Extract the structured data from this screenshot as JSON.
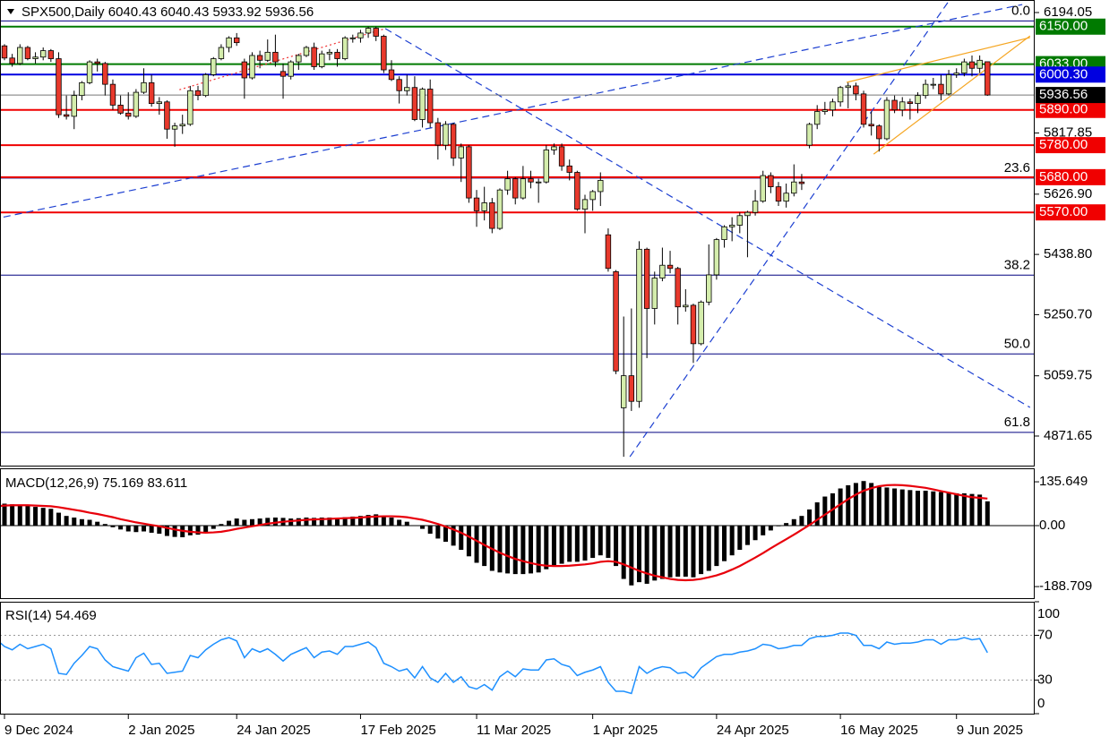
{
  "chart_data": {
    "type": "candlestick",
    "symbol": "SPX500,Daily",
    "xticks": [
      {
        "value": 1,
        "label": "9 Dec 2024"
      },
      {
        "value": 17,
        "label": "2 Jan 2025"
      },
      {
        "value": 31,
        "label": "24 Jan 2025"
      },
      {
        "value": 47,
        "label": "17 Feb 2025"
      },
      {
        "value": 62,
        "label": "11 Mar 2025"
      },
      {
        "value": 77,
        "label": "1 Apr 2025"
      },
      {
        "value": 93,
        "label": "24 Apr 2025"
      },
      {
        "value": 109,
        "label": "16 May 2025"
      },
      {
        "value": 124,
        "label": "9 Jun 2025"
      }
    ],
    "ylim": [
      4779.3,
      6233.2
    ],
    "yticks": [
      6194.05,
      5817.85,
      {
        "value": 5626.9,
        "label": "5626.90"
      },
      {
        "value": 5438.8,
        "label": "5438.80"
      },
      {
        "value": 5250.7,
        "label": "5250.70"
      },
      5059.75,
      4871.65
    ],
    "up_color": "#d4edac",
    "down_color": "#e8392c",
    "open": [
      6060,
      6090,
      6052,
      6035,
      6085,
      6050,
      6055,
      6075,
      6050,
      5875,
      5870,
      5935,
      5975,
      6040,
      6035,
      5970,
      5905,
      5880,
      5870,
      5945,
      5975,
      5910,
      5915,
      5830,
      5840,
      5845,
      5950,
      5935,
      6000,
      6050,
      6085,
      6115,
      6040,
      5990,
      6060,
      6045,
      6070,
      6010,
      5995,
      6040,
      6060,
      6085,
      6025,
      6065,
      6070,
      6050,
      6115,
      6115,
      6130,
      6145,
      6120,
      6015,
      5985,
      5950,
      5960,
      5860,
      5955,
      5850,
      5780,
      5845,
      5740,
      5775,
      5615,
      5575,
      5600,
      5520,
      5640,
      5675,
      5615,
      5675,
      5665,
      5665,
      5765,
      5775,
      5715,
      5695,
      5580,
      5610,
      5635,
      5500,
      5385,
      4960,
      5060,
      4980,
      5455,
      5270,
      5365,
      5405,
      5395,
      5275,
      5280,
      5160,
      5290,
      5375,
      5485,
      5525,
      5530,
      5560,
      5570,
      5605,
      5685,
      5650,
      5605,
      5630,
      5665,
      5780,
      5845,
      5885,
      5890,
      5915,
      5960,
      5965,
      5940,
      5845,
      5840,
      5800,
      5920,
      5890,
      5915,
      5910,
      5935,
      5970,
      5970,
      5940,
      6000,
      6005,
      6040,
      6020,
      6040.43
    ],
    "high": [
      6100,
      6095,
      6065,
      6095,
      6090,
      6070,
      6085,
      6080,
      6070,
      5935,
      5950,
      5980,
      6045,
      6050,
      6040,
      5985,
      5935,
      5945,
      5955,
      6020,
      6000,
      5930,
      5920,
      5850,
      5875,
      5965,
      5965,
      6005,
      6055,
      6095,
      6120,
      6130,
      6050,
      6070,
      6075,
      6110,
      6125,
      6035,
      6045,
      6065,
      6090,
      6100,
      6075,
      6080,
      6080,
      6120,
      6125,
      6140,
      6150,
      6150,
      6125,
      6045,
      5995,
      6000,
      5995,
      5960,
      5985,
      5865,
      5855,
      5850,
      5785,
      5780,
      5640,
      5650,
      5615,
      5645,
      5700,
      5680,
      5715,
      5700,
      5675,
      5780,
      5785,
      5785,
      5735,
      5700,
      5625,
      5640,
      5695,
      5520,
      5390,
      5245,
      5270,
      5480,
      5460,
      5385,
      5460,
      5450,
      5400,
      5330,
      5285,
      5295,
      5470,
      5490,
      5530,
      5555,
      5570,
      5575,
      5640,
      5700,
      5695,
      5665,
      5660,
      5720,
      5690,
      5850,
      5905,
      5915,
      5925,
      5965,
      5975,
      5975,
      5950,
      5885,
      5845,
      5930,
      5935,
      5930,
      5925,
      5945,
      5985,
      5990,
      6000,
      6015,
      6020,
      6050,
      6060,
      6060,
      6040.43
    ],
    "low": [
      6050,
      6045,
      6025,
      6030,
      6045,
      6035,
      6045,
      6040,
      5865,
      5860,
      5830,
      5920,
      5970,
      6010,
      5935,
      5890,
      5875,
      5860,
      5865,
      5940,
      5900,
      5875,
      5800,
      5775,
      5815,
      5840,
      5920,
      5930,
      5995,
      6045,
      6070,
      6090,
      5925,
      5985,
      6020,
      6040,
      6025,
      5925,
      5985,
      6015,
      6055,
      6015,
      6020,
      6045,
      6025,
      6045,
      6100,
      6100,
      6115,
      6105,
      6005,
      5980,
      5910,
      5935,
      5855,
      5835,
      5835,
      5735,
      5765,
      5715,
      5665,
      5600,
      5525,
      5545,
      5505,
      5515,
      5625,
      5595,
      5610,
      5645,
      5600,
      5660,
      5750,
      5700,
      5670,
      5575,
      5505,
      5575,
      5590,
      5385,
      5065,
      4807,
      4950,
      4960,
      5115,
      5220,
      5355,
      5380,
      5220,
      5260,
      5100,
      5155,
      5280,
      5360,
      5460,
      5480,
      5505,
      5430,
      5560,
      5600,
      5630,
      5590,
      5585,
      5620,
      5640,
      5770,
      5830,
      5875,
      5870,
      5900,
      5895,
      5920,
      5835,
      5810,
      5760,
      5795,
      5880,
      5870,
      5860,
      5880,
      5925,
      5955,
      5920,
      5935,
      5990,
      5995,
      5995,
      6005,
      5933.92
    ],
    "close": [
      6090,
      6052,
      6035,
      6085,
      6050,
      6055,
      6075,
      6050,
      5875,
      5870,
      5935,
      5975,
      6040,
      6035,
      5970,
      5905,
      5880,
      5870,
      5945,
      5975,
      5910,
      5915,
      5830,
      5840,
      5845,
      5950,
      5935,
      6000,
      6050,
      6085,
      6115,
      6100,
      5990,
      6060,
      6045,
      6070,
      6040,
      5995,
      6040,
      6060,
      6085,
      6025,
      6065,
      6070,
      6050,
      6115,
      6115,
      6130,
      6145,
      6120,
      6015,
      5985,
      5950,
      5960,
      5860,
      5955,
      5850,
      5780,
      5845,
      5740,
      5775,
      5615,
      5575,
      5600,
      5520,
      5640,
      5675,
      5615,
      5675,
      5665,
      5665,
      5765,
      5775,
      5715,
      5695,
      5580,
      5610,
      5635,
      5670,
      5395,
      5075,
      5060,
      4980,
      5455,
      5270,
      5365,
      5405,
      5395,
      5275,
      5280,
      5160,
      5290,
      5375,
      5485,
      5525,
      5530,
      5560,
      5570,
      5605,
      5685,
      5650,
      5605,
      5630,
      5665,
      5660,
      5845,
      5885,
      5890,
      5915,
      5960,
      5965,
      5940,
      5845,
      5840,
      5800,
      5920,
      5890,
      5915,
      5910,
      5935,
      5970,
      5970,
      5940,
      6000,
      6005,
      6040,
      6020,
      6045,
      5936.56
    ],
    "levels": [
      {
        "value": 6150,
        "label": "6150.00",
        "color": "#007a00"
      },
      {
        "value": 6033,
        "label": "6033.00",
        "color": "#007a00"
      },
      {
        "value": 6000.3,
        "label": "6000.30",
        "color": "#0000e0"
      },
      {
        "value": 5890,
        "label": "5890.00",
        "color": "#f00000"
      },
      {
        "value": 5780,
        "label": "5780.00",
        "color": "#f00000"
      },
      {
        "value": 5680,
        "label": "5680.00",
        "color": "#f00000"
      },
      {
        "value": 5570,
        "label": "5570.00",
        "color": "#f00000"
      }
    ],
    "fibonacci": {
      "color": "#000080",
      "levels": [
        {
          "value": 6168,
          "label": "0.0"
        },
        {
          "value": 5677,
          "label": "23.6"
        },
        {
          "value": 5374,
          "label": "38.2"
        },
        {
          "value": 5128,
          "label": "50.0"
        },
        {
          "value": 4883,
          "label": "61.8"
        }
      ]
    },
    "trendlines": [
      {
        "from": [
          -0.6,
          5548
        ],
        "to": [
          132.5,
          6219
        ],
        "color": "#1c3fd1",
        "dash": "8 5"
      },
      {
        "from": [
          50.2,
          6144
        ],
        "to": [
          133.5,
          4961
        ],
        "color": "#1c3fd1",
        "dash": "8 5"
      },
      {
        "from": [
          81.8,
          4807
        ],
        "to": [
          123.1,
          6233
        ],
        "color": "#1c3fd1",
        "dash": "8 5"
      },
      {
        "from": [
          23.6,
          5953
        ],
        "to": [
          50.2,
          6144
        ],
        "color": "#f03030",
        "dash": "2 3"
      },
      {
        "from": [
          109.8,
          5976
        ],
        "to": [
          133.5,
          6116
        ],
        "color": "#f5a623",
        "dash": "none"
      },
      {
        "from": [
          113.3,
          5752
        ],
        "to": [
          133.5,
          6121
        ],
        "color": "#f5a623",
        "dash": "none"
      }
    ],
    "macd": {
      "title": "MACD(12,26,9)",
      "ylim": [
        -224.5,
        177.4
      ],
      "yticks": [
        135.649,
        {
          "value": 0,
          "label": "0.00"
        },
        -188.709
      ],
      "color": "#000000",
      "signal_color": "#e8000b",
      "values": [
        70,
        68,
        66,
        65,
        62,
        58,
        55,
        52,
        40,
        30,
        25,
        20,
        18,
        12,
        5,
        -5,
        -12,
        -18,
        -20,
        -18,
        -22,
        -25,
        -32,
        -35,
        -36,
        -30,
        -28,
        -20,
        -10,
        5,
        15,
        22,
        18,
        20,
        22,
        24,
        25,
        24,
        22,
        23,
        25,
        24,
        25,
        25,
        23,
        26,
        28,
        30,
        33,
        35,
        30,
        25,
        18,
        12,
        0,
        -10,
        -25,
        -40,
        -50,
        -62,
        -75,
        -95,
        -115,
        -125,
        -140,
        -145,
        -148,
        -150,
        -150,
        -148,
        -145,
        -135,
        -125,
        -118,
        -112,
        -112,
        -108,
        -100,
        -92,
        -100,
        -125,
        -165,
        -185,
        -175,
        -180,
        -170,
        -165,
        -160,
        -158,
        -158,
        -160,
        -150,
        -140,
        -125,
        -110,
        -92,
        -75,
        -60,
        -45,
        -30,
        -15,
        -2,
        8,
        20,
        30,
        50,
        72,
        90,
        100,
        115,
        125,
        132,
        138,
        132,
        120,
        118,
        115,
        112,
        110,
        108,
        108,
        106,
        104,
        102,
        100,
        100,
        98,
        96,
        75.169
      ],
      "signal": [
        60,
        62,
        63,
        63,
        63,
        62,
        61,
        60,
        57,
        53,
        49,
        45,
        40,
        36,
        31,
        26,
        20,
        15,
        10,
        6,
        2,
        -2,
        -7,
        -12,
        -16,
        -19,
        -21,
        -22,
        -21,
        -19,
        -15,
        -10,
        -6,
        -2,
        2,
        6,
        9,
        12,
        14,
        16,
        18,
        19,
        20,
        21,
        22,
        23,
        24,
        25,
        27,
        28,
        29,
        29,
        28,
        26,
        22,
        18,
        12,
        5,
        -3,
        -12,
        -22,
        -34,
        -47,
        -60,
        -72,
        -84,
        -94,
        -103,
        -110,
        -116,
        -121,
        -124,
        -125,
        -125,
        -124,
        -122,
        -120,
        -117,
        -112,
        -110,
        -112,
        -120,
        -130,
        -140,
        -148,
        -155,
        -160,
        -165,
        -168,
        -169,
        -168,
        -165,
        -160,
        -154,
        -146,
        -136,
        -125,
        -112,
        -99,
        -85,
        -70,
        -56,
        -42,
        -28,
        -13,
        2,
        18,
        34,
        50,
        66,
        82,
        96,
        108,
        116,
        122,
        125,
        126,
        125,
        123,
        120,
        117,
        112,
        107,
        102,
        97,
        92,
        88,
        86,
        83.611
      ]
    },
    "rsi": {
      "title": "RSI(14)",
      "ylim": [
        0,
        100
      ],
      "yticks": [
        100,
        70,
        30,
        0
      ],
      "color": "#1e90ff",
      "values": [
        66,
        60,
        57,
        62,
        58,
        60,
        62,
        58,
        36,
        35,
        45,
        52,
        60,
        58,
        48,
        42,
        40,
        38,
        50,
        54,
        44,
        45,
        36,
        37,
        38,
        52,
        50,
        57,
        62,
        66,
        68,
        65,
        50,
        58,
        55,
        58,
        53,
        47,
        53,
        56,
        59,
        50,
        55,
        56,
        53,
        60,
        60,
        62,
        64,
        59,
        45,
        42,
        38,
        40,
        32,
        42,
        32,
        28,
        36,
        28,
        33,
        24,
        22,
        26,
        21,
        33,
        38,
        33,
        40,
        39,
        39,
        48,
        49,
        44,
        42,
        34,
        37,
        39,
        42,
        28,
        20,
        20,
        18,
        42,
        36,
        40,
        42,
        41,
        36,
        37,
        32,
        41,
        46,
        51,
        53,
        53,
        55,
        56,
        58,
        62,
        61,
        58,
        59,
        61,
        61,
        67,
        69,
        69,
        70,
        72,
        72,
        70,
        61,
        61,
        58,
        64,
        62,
        63,
        63,
        64,
        66,
        66,
        62,
        66,
        66,
        68,
        66,
        67,
        54.469
      ]
    }
  }
}
